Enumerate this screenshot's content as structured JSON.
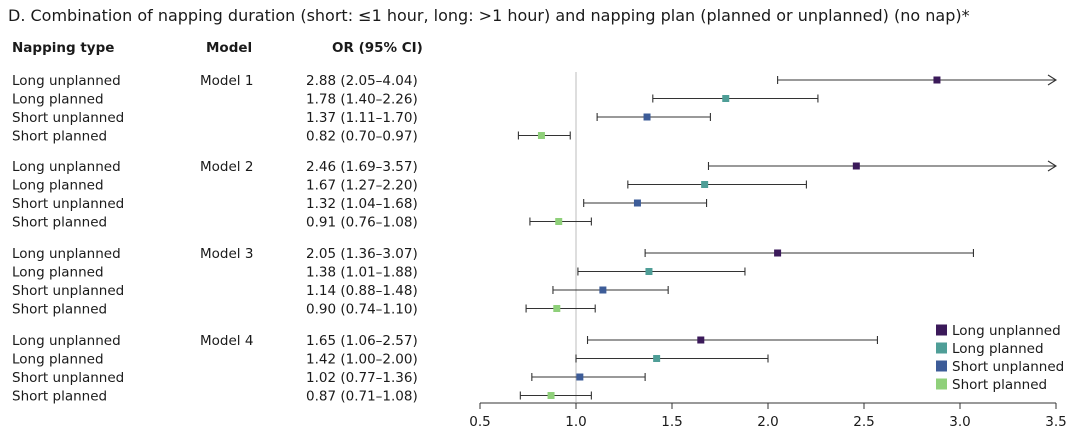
{
  "chart_data": {
    "type": "forest",
    "title": "D. Combination of napping duration (short: ≤1 hour, long: >1 hour) and napping plan (planned or unplanned) (no nap)*",
    "columns": {
      "type": "Napping type",
      "model": "Model",
      "or": "OR (95% CI)"
    },
    "x_ticks": [
      "0.5",
      "1.0",
      "1.5",
      "2.0",
      "2.5",
      "3.0",
      "3.5"
    ],
    "xlim": [
      0.5,
      3.5
    ],
    "reference_line": 1.0,
    "colors": {
      "Long unplanned": "#3b1a5a",
      "Long planned": "#4f9e97",
      "Short unplanned": "#3d5c98",
      "Short planned": "#8fd07a"
    },
    "legend": [
      "Long unplanned",
      "Long planned",
      "Short unplanned",
      "Short planned"
    ],
    "groups": [
      {
        "model": "Model 1",
        "rows": [
          {
            "type": "Long unplanned",
            "text": "2.88 (2.05–4.04)",
            "or": 2.88,
            "lo": 2.05,
            "hi": 4.04
          },
          {
            "type": "Long planned",
            "text": "1.78 (1.40–2.26)",
            "or": 1.78,
            "lo": 1.4,
            "hi": 2.26
          },
          {
            "type": "Short unplanned",
            "text": "1.37 (1.11–1.70)",
            "or": 1.37,
            "lo": 1.11,
            "hi": 1.7
          },
          {
            "type": "Short planned",
            "text": "0.82 (0.70–0.97)",
            "or": 0.82,
            "lo": 0.7,
            "hi": 0.97
          }
        ]
      },
      {
        "model": "Model 2",
        "rows": [
          {
            "type": "Long unplanned",
            "text": "2.46 (1.69–3.57)",
            "or": 2.46,
            "lo": 1.69,
            "hi": 3.57
          },
          {
            "type": "Long planned",
            "text": "1.67 (1.27–2.20)",
            "or": 1.67,
            "lo": 1.27,
            "hi": 2.2
          },
          {
            "type": "Short unplanned",
            "text": "1.32 (1.04–1.68)",
            "or": 1.32,
            "lo": 1.04,
            "hi": 1.68
          },
          {
            "type": "Short planned",
            "text": "0.91 (0.76–1.08)",
            "or": 0.91,
            "lo": 0.76,
            "hi": 1.08
          }
        ]
      },
      {
        "model": "Model 3",
        "rows": [
          {
            "type": "Long unplanned",
            "text": "2.05 (1.36–3.07)",
            "or": 2.05,
            "lo": 1.36,
            "hi": 3.07
          },
          {
            "type": "Long planned",
            "text": "1.38 (1.01–1.88)",
            "or": 1.38,
            "lo": 1.01,
            "hi": 1.88
          },
          {
            "type": "Short unplanned",
            "text": "1.14 (0.88–1.48)",
            "or": 1.14,
            "lo": 0.88,
            "hi": 1.48
          },
          {
            "type": "Short planned",
            "text": "0.90 (0.74–1.10)",
            "or": 0.9,
            "lo": 0.74,
            "hi": 1.1
          }
        ]
      },
      {
        "model": "Model 4",
        "rows": [
          {
            "type": "Long unplanned",
            "text": "1.65 (1.06–2.57)",
            "or": 1.65,
            "lo": 1.06,
            "hi": 2.57
          },
          {
            "type": "Long planned",
            "text": "1.42 (1.00–2.00)",
            "or": 1.42,
            "lo": 1.0,
            "hi": 2.0
          },
          {
            "type": "Short unplanned",
            "text": "1.02 (0.77–1.36)",
            "or": 1.02,
            "lo": 0.77,
            "hi": 1.36
          },
          {
            "type": "Short planned",
            "text": "0.87 (0.71–1.08)",
            "or": 0.87,
            "lo": 0.71,
            "hi": 1.08
          }
        ]
      }
    ]
  }
}
